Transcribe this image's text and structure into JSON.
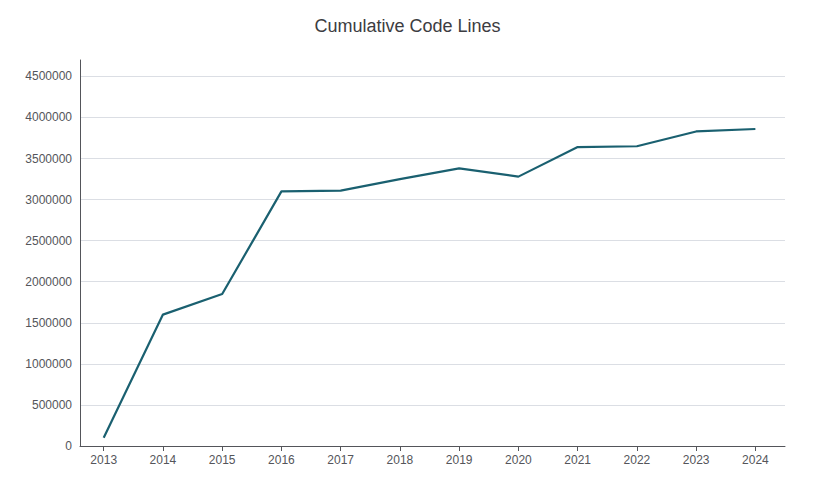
{
  "chart_data": {
    "type": "line",
    "title": "Cumulative Code Lines",
    "x": [
      2013,
      2014,
      2015,
      2016,
      2017,
      2018,
      2019,
      2020,
      2021,
      2022,
      2023,
      2024
    ],
    "values": [
      100000,
      1600000,
      1850000,
      3100000,
      3110000,
      3250000,
      3380000,
      3280000,
      3640000,
      3650000,
      3830000,
      3860000
    ],
    "color": "#1a6070",
    "xlim": [
      2012.6,
      2024.5
    ],
    "xticks": [
      2013,
      2014,
      2015,
      2016,
      2017,
      2018,
      2019,
      2020,
      2021,
      2022,
      2023,
      2024
    ],
    "ylim": [
      0,
      4700000
    ],
    "yticks": [
      0,
      500000,
      1000000,
      1500000,
      2000000,
      2500000,
      3000000,
      3500000,
      4000000,
      4500000
    ],
    "grid": true
  }
}
